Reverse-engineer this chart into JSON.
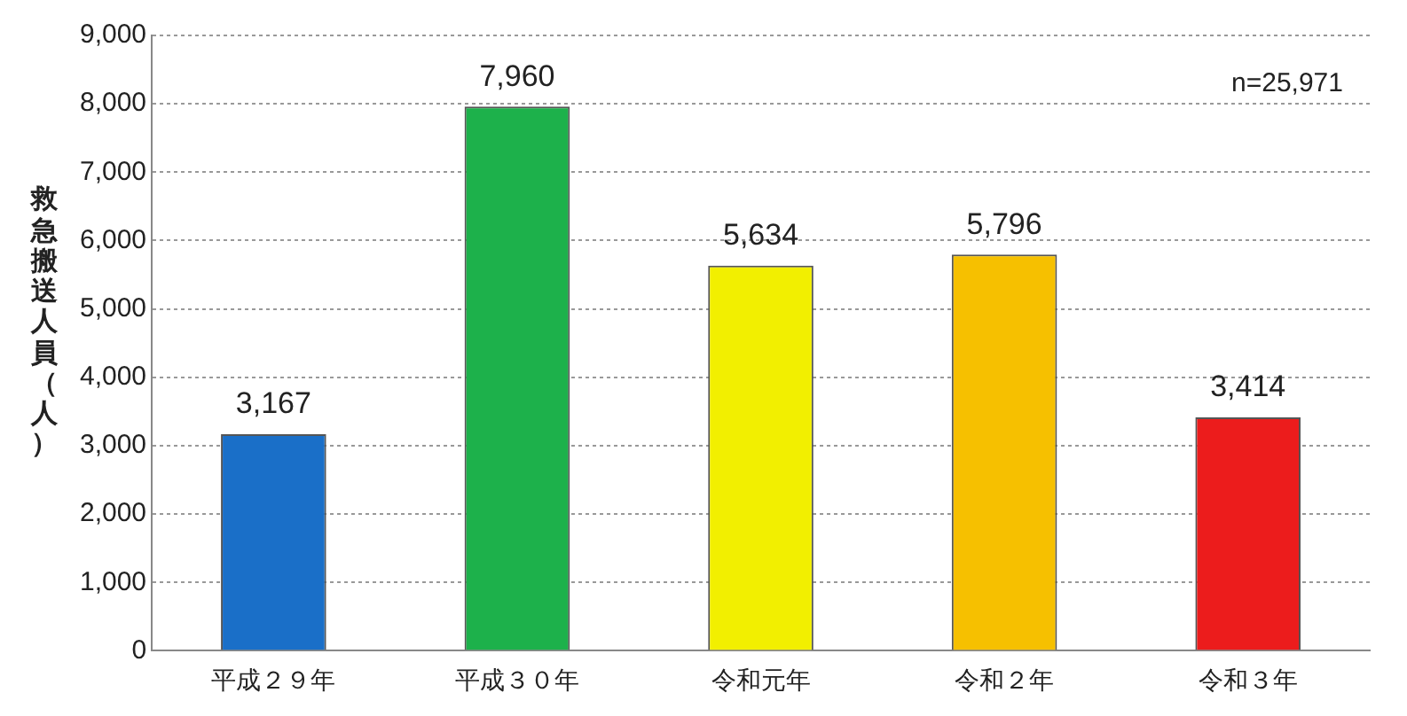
{
  "chart_data": {
    "type": "bar",
    "ylabel": "救急搬送人員（人）",
    "categories": [
      "平成２９年",
      "平成３０年",
      "令和元年",
      "令和２年",
      "令和３年"
    ],
    "values": [
      3167,
      7960,
      5634,
      5796,
      3414
    ],
    "colors": [
      "#1a6fc8",
      "#1db14b",
      "#f2ef00",
      "#f6c000",
      "#ec1c1c"
    ],
    "ylim": [
      0,
      9000
    ],
    "yticks": [
      {
        "value": 0,
        "label": "0"
      },
      {
        "value": 1000,
        "label": "1,000"
      },
      {
        "value": 2000,
        "label": "2,000"
      },
      {
        "value": 3000,
        "label": "3,000"
      },
      {
        "value": 4000,
        "label": "4,000"
      },
      {
        "value": 5000,
        "label": "5,000"
      },
      {
        "value": 6000,
        "label": "6,000"
      },
      {
        "value": 7000,
        "label": "7,000"
      },
      {
        "value": 8000,
        "label": "8,000"
      },
      {
        "value": 9000,
        "label": "9,000"
      }
    ],
    "value_labels": [
      "3,167",
      "7,960",
      "5,634",
      "5,796",
      "3,414"
    ],
    "grid": "y",
    "legend": false,
    "annotations": [
      "n=25,971"
    ]
  }
}
